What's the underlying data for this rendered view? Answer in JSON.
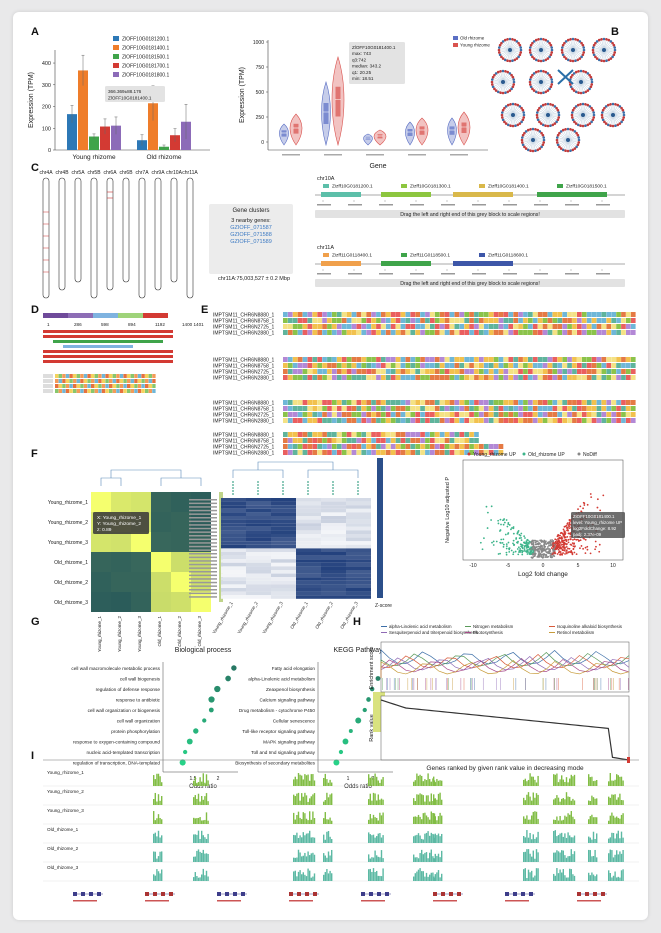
{
  "panels": {
    "a": "A",
    "b": "B",
    "c": "C",
    "d": "D",
    "e": "E",
    "f": "F",
    "g": "G",
    "h": "H",
    "i": "I"
  },
  "colors": {
    "blue": "#2d78b6",
    "orange": "#ef7d2a",
    "green": "#3fa44a",
    "red": "#d33a33",
    "purple": "#8c6bb8",
    "teal": "#5cbfa9",
    "lime": "#8dc63f",
    "navy": "#213f7a"
  },
  "panelA": {
    "bar": {
      "legend": [
        "ZlOFF10G0181200.1",
        "ZlOFF10G0181400.1",
        "ZlOFF10G0181500.1",
        "ZlOFF10G0181700.1",
        "ZlOFF10G0181800.1"
      ],
      "categories": [
        "Young rhizome",
        "Old rhizome"
      ],
      "ylabel": "Expression (TPM)",
      "yticks": [
        "0",
        "100",
        "200",
        "300",
        "400"
      ],
      "tooltip": [
        "366.369±88.176",
        "ZlOFF10G0181400.1"
      ]
    },
    "violin": {
      "ylabel": "Expression (TPM)",
      "xlabel": "Gene",
      "yticks": [
        "0",
        "250",
        "500",
        "750",
        "1000"
      ],
      "legend": [
        "Old rhizome",
        "Young rhizome"
      ],
      "tooltip": [
        "ZlOFF10G0181400.1",
        "max: 743",
        "q3:742",
        "median: 343.2",
        "q1: 20.25",
        "min: 18.51"
      ]
    }
  },
  "chart_data": [
    {
      "type": "bar",
      "categories": [
        "Young rhizome",
        "Old rhizome"
      ],
      "ylabel": "Expression (TPM)",
      "ylim": [
        0,
        460
      ],
      "series": [
        {
          "name": "ZlOFF10G0181200.1",
          "values": [
            165,
            45
          ]
        },
        {
          "name": "ZlOFF10G0181400.1",
          "values": [
            366,
            215
          ]
        },
        {
          "name": "ZlOFF10G0181500.1",
          "values": [
            62,
            15
          ]
        },
        {
          "name": "ZlOFF10G0181700.1",
          "values": [
            108,
            68
          ]
        },
        {
          "name": "ZlOFF10G0181800.1",
          "values": [
            112,
            130
          ]
        }
      ]
    }
  ],
  "panelC": {
    "chroms": [
      "chr4A",
      "chr4B",
      "chr5A",
      "chr5B",
      "chr6A",
      "chr6B",
      "chr7A",
      "chr9A",
      "chr10A",
      "chr11A"
    ],
    "cluster_title": "Gene clusters",
    "cluster_sub": "3 nearby genes:",
    "cluster_genes": [
      "GZIOFF_071587",
      "GZIOFF_071588",
      "GZIOFF_071589"
    ],
    "cluster_loc": "chr11A:75,003,527 ± 0.2 Mbp",
    "track1": {
      "chr": "chr10A",
      "genes": [
        "Zizff10G0181200.1",
        "Zizff10G0181300.1",
        "Zizff10G0181400.1",
        "Zizff10G0181500.1"
      ]
    },
    "track2": {
      "chr": "chr11A",
      "genes": [
        "Zizff11G0118400.1",
        "Zizff11G0118500.1",
        "Zizff11G0118600.1"
      ]
    },
    "drag": "Drag the left and right end of this grey block to scale regions!"
  },
  "panelD": {
    "scale": [
      "1",
      "286",
      "598",
      "894",
      "1192",
      "1400 1401"
    ]
  },
  "panelE": {
    "names": [
      "IMPTSM11_CHR6N8880_1",
      "IMPTSM11_CHR6N8758_1",
      "IMPTSM11_CHR6N2725_1",
      "IMPTSM11_CHR6N2880_1"
    ]
  },
  "panelF": {
    "samples": [
      "Young_rhizome_1",
      "Young_rhizome_2",
      "Young_rhizome_3",
      "Old_rhizome_1",
      "Old_rhizome_2",
      "Old_rhizome_3"
    ],
    "corr_tooltip": [
      "X: Young_rhizome_1",
      "Y: Young_rhizome_2",
      "z: 0.89"
    ],
    "heat_legend": "Z-score",
    "volcano_legend": [
      "Young_rhizome UP",
      "Old_rhizome UP",
      "NoDiff"
    ],
    "volcano_xlabel": "Log2 fold change",
    "volcano_ylabel": "Negative Log10 adjusted P",
    "volcano_tooltip": [
      "ZlOFF10G0181400.1",
      "level: Young_rhizome UP",
      "log2FoldChange: 8.92",
      "padj: 2.37e-09"
    ]
  },
  "panelG": {
    "bp_title": "Biological process",
    "bp_terms": [
      "cell wall macromolecule metabolic process",
      "cell wall biogenesis",
      "regulation of defense response",
      "response to antibiotic",
      "cell wall organization or biogenesis",
      "cell wall organization",
      "protein phosphorylation",
      "response to oxygen-containing compound",
      "nucleic acid-templated transcription",
      "regulation of transcription, DNA-templated"
    ],
    "kegg_title": "KEGG Pathway",
    "kegg_terms": [
      "Fatty acid elongation",
      "alpha-Linolenic acid metabolism",
      "Zeaxpenol biosynthesis",
      "Calcium signaling pathway",
      "Drug metabolism - cytochrome P450",
      "Cellular senescence",
      "Toll-like receptor signaling pathway",
      "MAPK signaling pathway",
      "Toll and Imd signaling pathway",
      "Biosynthesis of secondary metabolites"
    ],
    "xlabel": "Odds ratio",
    "bp_ticks": [
      "1.5",
      "2"
    ],
    "kegg_ticks": [
      "1",
      "2"
    ]
  },
  "panelH": {
    "legend": [
      "alpha-Linolenic acid metabolism",
      "Nitrogen metabolism",
      "Isoquinoline alkaloid biosynthesis",
      "Sesquiterpenoid and triterpenoid biosynthesis",
      "Photosynthesis",
      "Retinol metabolism"
    ],
    "ylabel1": "Enrichment score",
    "ylabel2": "Rank value",
    "xlabel": "Genes ranked by given rank value in decreasing mode"
  },
  "panelI": {
    "tracks": [
      "Young_rhizome_1",
      "Young_rhizome_2",
      "Young_rhizome_3",
      "Old_rhizome_1",
      "Old_rhizome_2",
      "Old_rhizome_3"
    ]
  }
}
